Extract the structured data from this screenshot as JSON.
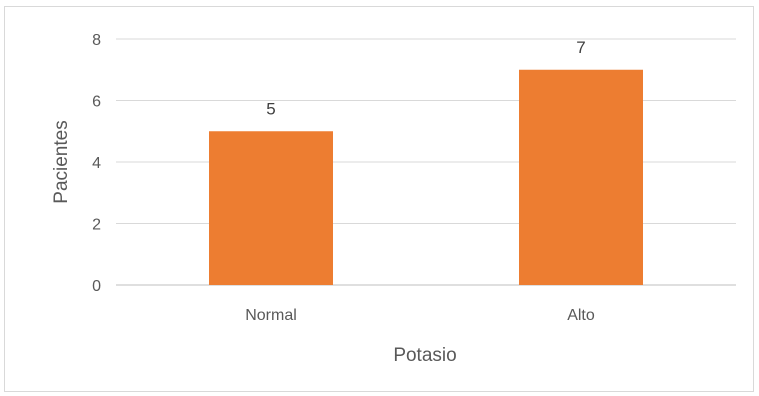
{
  "chart_data": {
    "type": "bar",
    "title": "",
    "xlabel": "Potasio",
    "ylabel": "Pacientes",
    "categories": [
      "Normal",
      "Alto"
    ],
    "series": [
      {
        "values": [
          5,
          7
        ],
        "color": "#ED7D31"
      }
    ],
    "ylim": [
      0,
      8
    ],
    "yticks": [
      "0",
      "2",
      "4",
      "6",
      "8"
    ],
    "data_labels": [
      "5",
      "7"
    ],
    "grid": true,
    "legend": "none"
  }
}
